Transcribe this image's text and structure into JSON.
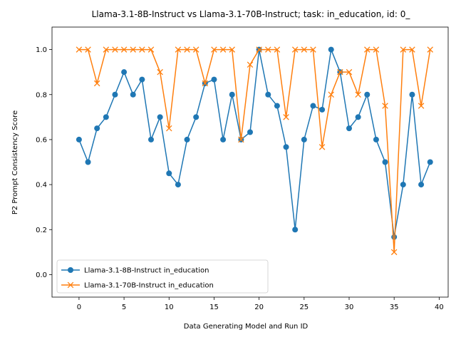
{
  "chart_data": {
    "type": "line",
    "title": "Llama-3.1-8B-Instruct vs Llama-3.1-70B-Instruct; task: in_education, id: 0_",
    "xlabel": "Data Generating Model and Run ID",
    "ylabel": "P2 Prompt Consistency Score",
    "xlim": [
      -3,
      41
    ],
    "ylim": [
      -0.1,
      1.1
    ],
    "xticks": [
      0,
      5,
      10,
      15,
      20,
      25,
      30,
      35,
      40
    ],
    "yticks": [
      0.0,
      0.2,
      0.4,
      0.6,
      0.8,
      1.0
    ],
    "xtick_labels": [
      "0",
      "5",
      "10",
      "15",
      "20",
      "25",
      "30",
      "35",
      "40"
    ],
    "ytick_labels": [
      "0.0",
      "0.2",
      "0.4",
      "0.6",
      "0.8",
      "1.0"
    ],
    "legend_position": "lower-left",
    "x": [
      0,
      1,
      2,
      3,
      4,
      5,
      6,
      7,
      8,
      9,
      10,
      11,
      12,
      13,
      14,
      15,
      16,
      17,
      18,
      19,
      20,
      21,
      22,
      23,
      24,
      25,
      26,
      27,
      28,
      29,
      30,
      31,
      32,
      33,
      34,
      35,
      36,
      37,
      38,
      39
    ],
    "series": [
      {
        "name": "Llama-3.1-8B-Instruct in_education",
        "color": "#1f77b4",
        "marker": "circle",
        "values": [
          0.6,
          0.5,
          0.65,
          0.7,
          0.8,
          0.9,
          0.8,
          0.867,
          0.6,
          0.7,
          0.45,
          0.4,
          0.6,
          0.7,
          0.85,
          0.867,
          0.6,
          0.8,
          0.6,
          0.633,
          1.0,
          0.8,
          0.75,
          0.567,
          0.2,
          0.6,
          0.75,
          0.733,
          1.0,
          0.9,
          0.65,
          0.7,
          0.8,
          0.6,
          0.5,
          0.167,
          0.4,
          0.8,
          0.4,
          0.5
        ]
      },
      {
        "name": "Llama-3.1-70B-Instruct in_education",
        "color": "#ff7f0e",
        "marker": "x",
        "values": [
          1.0,
          1.0,
          0.85,
          1.0,
          1.0,
          1.0,
          1.0,
          1.0,
          1.0,
          0.9,
          0.65,
          1.0,
          1.0,
          1.0,
          0.85,
          1.0,
          1.0,
          1.0,
          0.6,
          0.933,
          1.0,
          1.0,
          1.0,
          0.7,
          1.0,
          1.0,
          1.0,
          0.567,
          0.8,
          0.9,
          0.9,
          0.8,
          1.0,
          1.0,
          0.75,
          0.1,
          1.0,
          1.0,
          0.75,
          1.0
        ]
      }
    ]
  }
}
